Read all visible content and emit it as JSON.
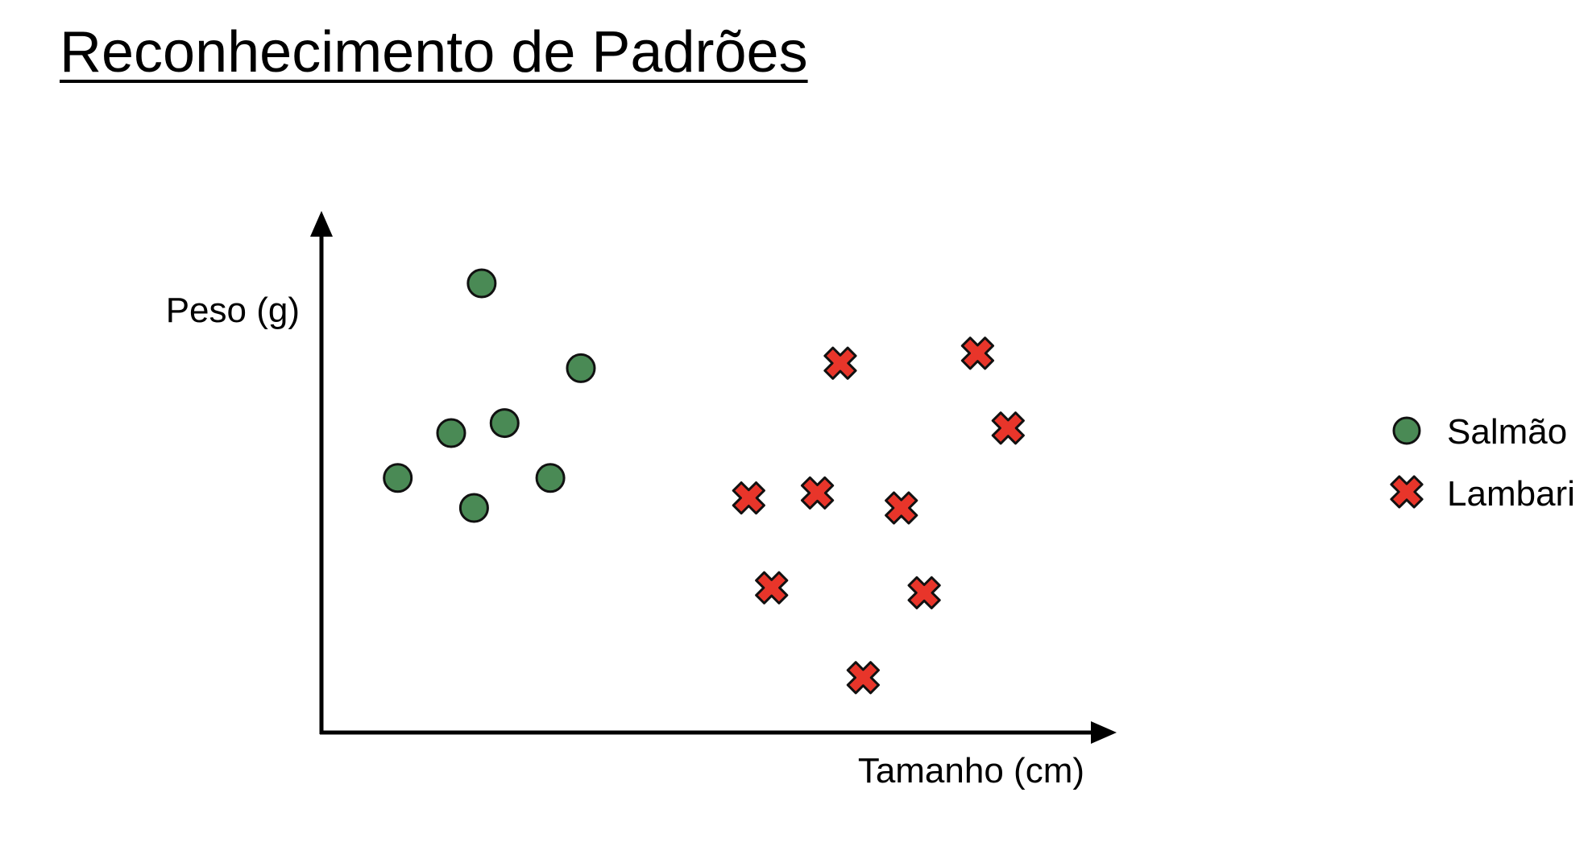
{
  "title": "Reconhecimento de Padrões",
  "colors": {
    "salmao": "#4a8a55",
    "lambari": "#e8352a",
    "outline": "#111111",
    "axis": "#000000"
  },
  "chart_data": {
    "type": "scatter",
    "title": "",
    "xlabel": "Tamanho (cm)",
    "ylabel": "Peso (g)",
    "grid": false,
    "legend_position": "right",
    "axis_ticks": false,
    "xlim": [
      0,
      100
    ],
    "ylim": [
      0,
      100
    ],
    "series": [
      {
        "name": "Salmão",
        "marker": "circle",
        "color": "#4a8a55",
        "points": [
          {
            "x": 21,
            "y": 90
          },
          {
            "x": 34,
            "y": 73
          },
          {
            "x": 17,
            "y": 60
          },
          {
            "x": 24,
            "y": 62
          },
          {
            "x": 10,
            "y": 51
          },
          {
            "x": 30,
            "y": 51
          },
          {
            "x": 20,
            "y": 45
          }
        ]
      },
      {
        "name": "Lambari",
        "marker": "x",
        "color": "#e8352a",
        "points": [
          {
            "x": 68,
            "y": 74
          },
          {
            "x": 86,
            "y": 76
          },
          {
            "x": 90,
            "y": 61
          },
          {
            "x": 56,
            "y": 47
          },
          {
            "x": 65,
            "y": 48
          },
          {
            "x": 76,
            "y": 45
          },
          {
            "x": 59,
            "y": 29
          },
          {
            "x": 79,
            "y": 28
          },
          {
            "x": 71,
            "y": 11
          }
        ]
      }
    ]
  }
}
